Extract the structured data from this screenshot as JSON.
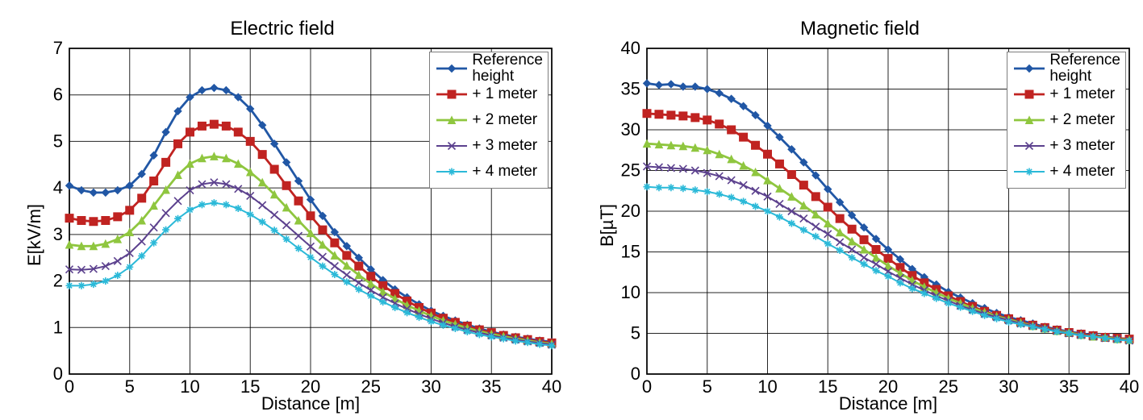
{
  "background_color": "#ffffff",
  "border_color": "#000000",
  "grid_color": "#000000",
  "axis_fontsize": 22,
  "title_fontsize": 24,
  "legend_fontsize": 19,
  "charts": [
    {
      "id": "electric",
      "title": "Electric field",
      "xlabel": "Distance [m]",
      "ylabel": "E[kV/m]",
      "xlim": [
        0,
        40
      ],
      "ylim": [
        0,
        7
      ],
      "xtick_step": 5,
      "ytick_step": 1,
      "legend_pos": "inside-top-right",
      "series": [
        {
          "name": "Reference height",
          "legend_label": "Reference\nheight",
          "color": "#2157a5",
          "marker": "diamond",
          "marker_size": 9,
          "line_width": 2.8,
          "x": [
            0,
            1,
            2,
            3,
            4,
            5,
            6,
            7,
            8,
            9,
            10,
            11,
            12,
            13,
            14,
            15,
            16,
            17,
            18,
            19,
            20,
            21,
            22,
            23,
            24,
            25,
            26,
            27,
            28,
            29,
            30,
            31,
            32,
            33,
            34,
            35,
            36,
            37,
            38,
            39,
            40
          ],
          "y": [
            4.05,
            3.95,
            3.9,
            3.9,
            3.95,
            4.05,
            4.3,
            4.7,
            5.2,
            5.65,
            5.95,
            6.1,
            6.15,
            6.1,
            5.95,
            5.7,
            5.35,
            4.95,
            4.55,
            4.15,
            3.75,
            3.4,
            3.05,
            2.75,
            2.5,
            2.25,
            2.02,
            1.82,
            1.65,
            1.5,
            1.36,
            1.25,
            1.15,
            1.06,
            0.98,
            0.91,
            0.85,
            0.8,
            0.76,
            0.72,
            0.69
          ]
        },
        {
          "name": "+ 1 meter",
          "legend_label": "+ 1 meter",
          "color": "#c02321",
          "marker": "square",
          "marker_size": 10,
          "line_width": 2.8,
          "x": [
            0,
            1,
            2,
            3,
            4,
            5,
            6,
            7,
            8,
            9,
            10,
            11,
            12,
            13,
            14,
            15,
            16,
            17,
            18,
            19,
            20,
            21,
            22,
            23,
            24,
            25,
            26,
            27,
            28,
            29,
            30,
            31,
            32,
            33,
            34,
            35,
            36,
            37,
            38,
            39,
            40
          ],
          "y": [
            3.35,
            3.3,
            3.28,
            3.3,
            3.38,
            3.52,
            3.78,
            4.15,
            4.55,
            4.95,
            5.2,
            5.33,
            5.37,
            5.33,
            5.2,
            5.0,
            4.72,
            4.4,
            4.05,
            3.72,
            3.4,
            3.1,
            2.82,
            2.55,
            2.32,
            2.1,
            1.9,
            1.73,
            1.57,
            1.43,
            1.31,
            1.2,
            1.11,
            1.03,
            0.95,
            0.89,
            0.83,
            0.78,
            0.74,
            0.7,
            0.67
          ]
        },
        {
          "name": "+ 2 meter",
          "legend_label": "+ 2 meter",
          "color": "#8fc63f",
          "marker": "triangle",
          "marker_size": 9,
          "line_width": 2.8,
          "x": [
            0,
            1,
            2,
            3,
            4,
            5,
            6,
            7,
            8,
            9,
            10,
            11,
            12,
            13,
            14,
            15,
            16,
            17,
            18,
            19,
            20,
            21,
            22,
            23,
            24,
            25,
            26,
            27,
            28,
            29,
            30,
            31,
            32,
            33,
            34,
            35,
            36,
            37,
            38,
            39,
            40
          ],
          "y": [
            2.78,
            2.75,
            2.75,
            2.8,
            2.9,
            3.05,
            3.3,
            3.62,
            3.96,
            4.28,
            4.52,
            4.64,
            4.68,
            4.64,
            4.52,
            4.34,
            4.12,
            3.86,
            3.58,
            3.3,
            3.03,
            2.78,
            2.55,
            2.33,
            2.13,
            1.94,
            1.77,
            1.62,
            1.48,
            1.36,
            1.25,
            1.15,
            1.07,
            0.99,
            0.92,
            0.86,
            0.81,
            0.76,
            0.72,
            0.68,
            0.65
          ]
        },
        {
          "name": "+ 3 meter",
          "legend_label": "+ 3 meter",
          "color": "#5c418e",
          "marker": "x",
          "marker_size": 9,
          "line_width": 2.0,
          "x": [
            0,
            1,
            2,
            3,
            4,
            5,
            6,
            7,
            8,
            9,
            10,
            11,
            12,
            13,
            14,
            15,
            16,
            17,
            18,
            19,
            20,
            21,
            22,
            23,
            24,
            25,
            26,
            27,
            28,
            29,
            30,
            31,
            32,
            33,
            34,
            35,
            36,
            37,
            38,
            39,
            40
          ],
          "y": [
            2.25,
            2.24,
            2.26,
            2.32,
            2.43,
            2.6,
            2.85,
            3.15,
            3.46,
            3.72,
            3.95,
            4.08,
            4.12,
            4.08,
            3.98,
            3.83,
            3.63,
            3.42,
            3.2,
            2.97,
            2.74,
            2.52,
            2.32,
            2.13,
            1.96,
            1.8,
            1.65,
            1.52,
            1.4,
            1.29,
            1.19,
            1.1,
            1.02,
            0.95,
            0.89,
            0.83,
            0.78,
            0.74,
            0.7,
            0.67,
            0.63
          ]
        },
        {
          "name": "+ 4 meter",
          "legend_label": "+ 4 meter",
          "color": "#2bb9d8",
          "marker": "star",
          "marker_size": 9,
          "line_width": 2.0,
          "x": [
            0,
            1,
            2,
            3,
            4,
            5,
            6,
            7,
            8,
            9,
            10,
            11,
            12,
            13,
            14,
            15,
            16,
            17,
            18,
            19,
            20,
            21,
            22,
            23,
            24,
            25,
            26,
            27,
            28,
            29,
            30,
            31,
            32,
            33,
            34,
            35,
            36,
            37,
            38,
            39,
            40
          ],
          "y": [
            1.9,
            1.9,
            1.93,
            2.0,
            2.12,
            2.3,
            2.54,
            2.82,
            3.1,
            3.34,
            3.53,
            3.64,
            3.68,
            3.64,
            3.56,
            3.43,
            3.27,
            3.09,
            2.9,
            2.7,
            2.51,
            2.32,
            2.14,
            1.98,
            1.82,
            1.68,
            1.55,
            1.43,
            1.32,
            1.22,
            1.13,
            1.05,
            0.98,
            0.91,
            0.85,
            0.8,
            0.76,
            0.71,
            0.68,
            0.64,
            0.61
          ]
        }
      ]
    },
    {
      "id": "magnetic",
      "title": "Magnetic field",
      "xlabel": "Distance [m]",
      "ylabel": "B[µT]",
      "xlim": [
        0,
        40
      ],
      "ylim": [
        0,
        40
      ],
      "xtick_step": 5,
      "ytick_step": 5,
      "legend_pos": "inside-top-right",
      "series": [
        {
          "name": "Reference height",
          "legend_label": "Reference\nheight",
          "color": "#2157a5",
          "marker": "diamond",
          "marker_size": 9,
          "line_width": 2.8,
          "x": [
            0,
            1,
            2,
            3,
            4,
            5,
            6,
            7,
            8,
            9,
            10,
            11,
            12,
            13,
            14,
            15,
            16,
            17,
            18,
            19,
            20,
            21,
            22,
            23,
            24,
            25,
            26,
            27,
            28,
            29,
            30,
            31,
            32,
            33,
            34,
            35,
            36,
            37,
            38,
            39,
            40
          ],
          "y": [
            35.7,
            35.5,
            35.6,
            35.3,
            35.3,
            35.0,
            34.5,
            33.8,
            32.9,
            31.8,
            30.5,
            29.1,
            27.6,
            26.0,
            24.4,
            22.7,
            21.1,
            19.5,
            18.0,
            16.6,
            15.3,
            14.1,
            12.9,
            11.9,
            11.0,
            10.1,
            9.4,
            8.7,
            8.1,
            7.5,
            7.0,
            6.6,
            6.2,
            5.8,
            5.5,
            5.2,
            5.0,
            4.8,
            4.6,
            4.4,
            4.3
          ]
        },
        {
          "name": "+ 1 meter",
          "legend_label": "+ 1 meter",
          "color": "#c02321",
          "marker": "square",
          "marker_size": 10,
          "line_width": 2.8,
          "x": [
            0,
            1,
            2,
            3,
            4,
            5,
            6,
            7,
            8,
            9,
            10,
            11,
            12,
            13,
            14,
            15,
            16,
            17,
            18,
            19,
            20,
            21,
            22,
            23,
            24,
            25,
            26,
            27,
            28,
            29,
            30,
            31,
            32,
            33,
            34,
            35,
            36,
            37,
            38,
            39,
            40
          ],
          "y": [
            32.0,
            31.9,
            31.8,
            31.7,
            31.5,
            31.2,
            30.7,
            30.0,
            29.1,
            28.1,
            27.0,
            25.8,
            24.5,
            23.2,
            21.8,
            20.5,
            19.1,
            17.8,
            16.5,
            15.3,
            14.2,
            13.1,
            12.1,
            11.2,
            10.4,
            9.6,
            8.9,
            8.3,
            7.7,
            7.2,
            6.8,
            6.4,
            6.0,
            5.7,
            5.4,
            5.1,
            4.9,
            4.7,
            4.5,
            4.4,
            4.3
          ]
        },
        {
          "name": "+ 2 meter",
          "legend_label": "+ 2 meter",
          "color": "#8fc63f",
          "marker": "triangle",
          "marker_size": 9,
          "line_width": 2.8,
          "x": [
            0,
            1,
            2,
            3,
            4,
            5,
            6,
            7,
            8,
            9,
            10,
            11,
            12,
            13,
            14,
            15,
            16,
            17,
            18,
            19,
            20,
            21,
            22,
            23,
            24,
            25,
            26,
            27,
            28,
            29,
            30,
            31,
            32,
            33,
            34,
            35,
            36,
            37,
            38,
            39,
            40
          ],
          "y": [
            28.3,
            28.2,
            28.1,
            28.0,
            27.8,
            27.5,
            27.0,
            26.4,
            25.6,
            24.8,
            23.8,
            22.8,
            21.8,
            20.7,
            19.6,
            18.5,
            17.4,
            16.3,
            15.3,
            14.3,
            13.3,
            12.4,
            11.5,
            10.7,
            10.0,
            9.3,
            8.7,
            8.1,
            7.6,
            7.1,
            6.7,
            6.3,
            5.9,
            5.6,
            5.3,
            5.1,
            4.8,
            4.6,
            4.5,
            4.3,
            4.2
          ]
        },
        {
          "name": "+ 3 meter",
          "legend_label": "+ 3 meter",
          "color": "#5c418e",
          "marker": "x",
          "marker_size": 9,
          "line_width": 2.0,
          "x": [
            0,
            1,
            2,
            3,
            4,
            5,
            6,
            7,
            8,
            9,
            10,
            11,
            12,
            13,
            14,
            15,
            16,
            17,
            18,
            19,
            20,
            21,
            22,
            23,
            24,
            25,
            26,
            27,
            28,
            29,
            30,
            31,
            32,
            33,
            34,
            35,
            36,
            37,
            38,
            39,
            40
          ],
          "y": [
            25.5,
            25.4,
            25.3,
            25.2,
            25.0,
            24.7,
            24.3,
            23.8,
            23.2,
            22.5,
            21.8,
            20.9,
            20.0,
            19.1,
            18.1,
            17.2,
            16.2,
            15.3,
            14.3,
            13.5,
            12.6,
            11.8,
            11.0,
            10.3,
            9.6,
            9.0,
            8.4,
            7.9,
            7.4,
            7.0,
            6.6,
            6.2,
            5.9,
            5.6,
            5.3,
            5.0,
            4.8,
            4.6,
            4.4,
            4.3,
            4.1
          ]
        },
        {
          "name": "+ 4 meter",
          "legend_label": "+ 4 meter",
          "color": "#2bb9d8",
          "marker": "star",
          "marker_size": 9,
          "line_width": 2.0,
          "x": [
            0,
            1,
            2,
            3,
            4,
            5,
            6,
            7,
            8,
            9,
            10,
            11,
            12,
            13,
            14,
            15,
            16,
            17,
            18,
            19,
            20,
            21,
            22,
            23,
            24,
            25,
            26,
            27,
            28,
            29,
            30,
            31,
            32,
            33,
            34,
            35,
            36,
            37,
            38,
            39,
            40
          ],
          "y": [
            23.0,
            22.9,
            22.9,
            22.8,
            22.6,
            22.4,
            22.1,
            21.7,
            21.2,
            20.6,
            20.0,
            19.3,
            18.5,
            17.7,
            16.9,
            16.0,
            15.2,
            14.3,
            13.5,
            12.7,
            12.0,
            11.2,
            10.5,
            9.9,
            9.3,
            8.7,
            8.2,
            7.7,
            7.2,
            6.8,
            6.4,
            6.1,
            5.8,
            5.5,
            5.2,
            5.0,
            4.7,
            4.6,
            4.4,
            4.2,
            4.1
          ]
        }
      ]
    }
  ]
}
